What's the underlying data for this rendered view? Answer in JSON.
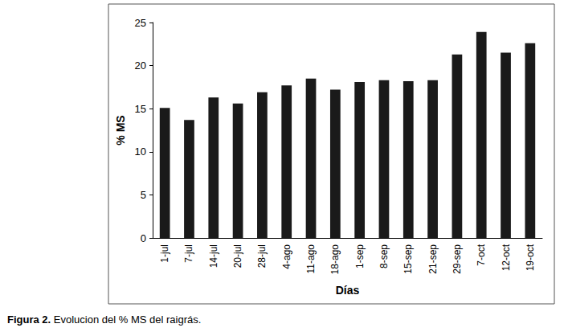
{
  "chart_data": {
    "type": "bar",
    "title": "Figura 2. Evolucion del % MS del raigrás.",
    "x_label": "Días",
    "y_label": "% MS",
    "categories": [
      "1-jul",
      "7-jul",
      "14-jul",
      "20-jul",
      "28-jul",
      "4-ago",
      "11-ago",
      "18-ago",
      "1-sep",
      "8-sep",
      "15-sep",
      "21-sep",
      "29-sep",
      "7-oct",
      "12-oct",
      "19-oct"
    ],
    "values": [
      15.1,
      13.7,
      16.3,
      15.6,
      16.9,
      17.7,
      18.5,
      17.2,
      18.1,
      18.3,
      18.2,
      18.3,
      21.3,
      23.9,
      21.5,
      22.6
    ],
    "color": "#1a1a1a",
    "ylim": [
      0,
      25
    ],
    "yticks": [
      0,
      5,
      10,
      15,
      20,
      25
    ],
    "grid": false
  }
}
